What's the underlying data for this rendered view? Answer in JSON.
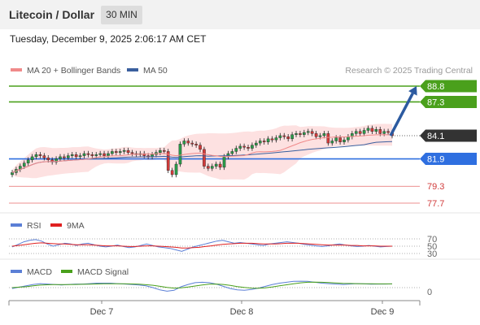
{
  "header": {
    "title": "Litecoin / Dollar",
    "interval": "30 MIN"
  },
  "timestamp": "Tuesday, December 9, 2025 2:06:17 AM CET",
  "credit": "Research © 2025 Trading Central",
  "colors": {
    "up_level": "#4aa01c",
    "down_level": "#2f6fe0",
    "small_level": "#e86a6a",
    "price_box": "#333333",
    "bollinger_fill": "#fde1e1",
    "ma20": "#f08a8a",
    "ma50": "#3a5f9e",
    "arrow": "#2c5aa0",
    "rsi": "#5b7fd6",
    "rsi_ma": "#e02020",
    "macd": "#5b7fd6",
    "macd_signal": "#4aa01c"
  },
  "chart_data": [
    {
      "type": "candlestick",
      "legend": [
        {
          "name": "MA 20 + Bollinger Bands",
          "color": "#f08a8a"
        },
        {
          "name": "MA 50",
          "color": "#3a5f9e"
        }
      ],
      "levels": [
        {
          "label": "88.8",
          "value": 88.8,
          "kind": "resistance"
        },
        {
          "label": "87.3",
          "value": 87.3,
          "kind": "resistance"
        },
        {
          "label": "84.1",
          "value": 84.1,
          "kind": "price"
        },
        {
          "label": "81.9",
          "value": 81.9,
          "kind": "support"
        },
        {
          "label": "79.3",
          "value": 79.3,
          "kind": "minor"
        },
        {
          "label": "77.7",
          "value": 77.7,
          "kind": "minor"
        }
      ],
      "close": [
        80.6,
        80.9,
        81.2,
        81.5,
        81.8,
        82.1,
        82.3,
        82.2,
        82.0,
        81.8,
        81.6,
        81.9,
        82.1,
        82.0,
        82.2,
        82.3,
        82.1,
        82.2,
        82.4,
        82.3,
        82.2,
        82.3,
        82.4,
        82.2,
        82.4,
        82.6,
        82.5,
        82.6,
        82.7,
        82.5,
        82.4,
        82.3,
        82.4,
        82.2,
        82.1,
        82.3,
        82.5,
        82.7,
        82.6,
        80.8,
        80.4,
        81.4,
        83.3,
        83.6,
        83.4,
        83.3,
        83.2,
        82.8,
        81.2,
        81.0,
        81.2,
        81.4,
        81.1,
        82.1,
        82.4,
        82.6,
        82.9,
        83.1,
        83.0,
        82.9,
        83.2,
        83.4,
        83.6,
        83.5,
        83.8,
        83.7,
        83.9,
        84.1,
        84.0,
        83.8,
        84.2,
        84.3,
        84.2,
        84.4,
        84.5,
        84.3,
        84.0,
        84.1,
        84.3,
        83.4,
        83.6,
        83.9,
        83.5,
        83.7,
        84.0,
        84.3,
        84.5,
        84.3,
        84.6,
        84.8,
        84.5,
        84.7,
        84.3,
        84.5,
        84.4,
        84.1
      ],
      "arrow": {
        "from": 84.1,
        "to": 88.8
      }
    },
    {
      "type": "line",
      "legend": [
        {
          "name": "RSI",
          "color": "#5b7fd6"
        },
        {
          "name": "9MA",
          "color": "#e02020"
        }
      ],
      "levels": [
        70,
        50,
        30
      ],
      "level_labels": [
        "70",
        "50",
        "30"
      ],
      "ylim": [
        0,
        100
      ],
      "series": [
        {
          "name": "RSI",
          "values": [
            48,
            55,
            62,
            66,
            68,
            64,
            56,
            50,
            54,
            58,
            56,
            52,
            56,
            58,
            54,
            50,
            48,
            50,
            53,
            49,
            46,
            48,
            52,
            56,
            52,
            48,
            46,
            44,
            40,
            36,
            42,
            48,
            52,
            56,
            60,
            64,
            66,
            62,
            58,
            60,
            58,
            56,
            54,
            52,
            56,
            58,
            60,
            62,
            60,
            58,
            55,
            53,
            51,
            49,
            51,
            54,
            56,
            53,
            51,
            49,
            50,
            52,
            50,
            48,
            49,
            50
          ]
        },
        {
          "name": "9MA",
          "values": [
            50,
            52,
            54,
            56,
            58,
            59,
            58,
            57,
            56,
            56,
            55,
            54,
            54,
            54,
            53,
            52,
            51,
            51,
            51,
            50,
            49,
            49,
            50,
            51,
            51,
            50,
            49,
            48,
            47,
            45,
            45,
            46,
            47,
            49,
            51,
            53,
            55,
            56,
            57,
            58,
            58,
            58,
            57,
            56,
            56,
            56,
            57,
            58,
            58,
            58,
            57,
            56,
            55,
            54,
            53,
            53,
            53,
            53,
            52,
            52,
            51,
            51,
            51,
            50,
            50,
            50
          ]
        }
      ]
    },
    {
      "type": "line",
      "legend": [
        {
          "name": "MACD",
          "color": "#5b7fd6"
        },
        {
          "name": "MACD Signal",
          "color": "#4aa01c"
        }
      ],
      "zero_label": "0",
      "ylim": [
        -1,
        1
      ],
      "series": [
        {
          "name": "MACD",
          "values": [
            -0.1,
            0.05,
            0.2,
            0.35,
            0.45,
            0.4,
            0.35,
            0.3,
            0.35,
            0.4,
            0.4,
            0.45,
            0.5,
            0.5,
            0.5,
            0.45,
            0.4,
            0.35,
            0.3,
            0.2,
            0.0,
            -0.25,
            -0.4,
            -0.3,
            0.1,
            0.35,
            0.55,
            0.6,
            0.55,
            0.4,
            0.15,
            -0.1,
            -0.25,
            -0.3,
            -0.2,
            -0.05,
            0.15,
            0.35,
            0.5,
            0.6,
            0.7,
            0.72,
            0.7,
            0.6,
            0.5,
            0.45,
            0.4,
            0.35,
            0.4,
            0.45,
            0.42,
            0.38,
            0.4,
            0.4,
            0.42
          ]
        },
        {
          "name": "MACD Signal",
          "values": [
            0.0,
            0.05,
            0.1,
            0.2,
            0.28,
            0.32,
            0.34,
            0.34,
            0.34,
            0.35,
            0.37,
            0.39,
            0.41,
            0.43,
            0.44,
            0.44,
            0.43,
            0.41,
            0.38,
            0.33,
            0.26,
            0.15,
            0.02,
            -0.05,
            -0.02,
            0.06,
            0.18,
            0.3,
            0.38,
            0.4,
            0.35,
            0.25,
            0.12,
            0.02,
            -0.05,
            -0.06,
            -0.02,
            0.08,
            0.2,
            0.32,
            0.44,
            0.54,
            0.6,
            0.62,
            0.6,
            0.56,
            0.52,
            0.48,
            0.46,
            0.45,
            0.44,
            0.43,
            0.42,
            0.42,
            0.42
          ]
        }
      ]
    }
  ],
  "x_axis": {
    "ticks": [
      "Dec 7",
      "Dec 8",
      "Dec 9"
    ]
  }
}
